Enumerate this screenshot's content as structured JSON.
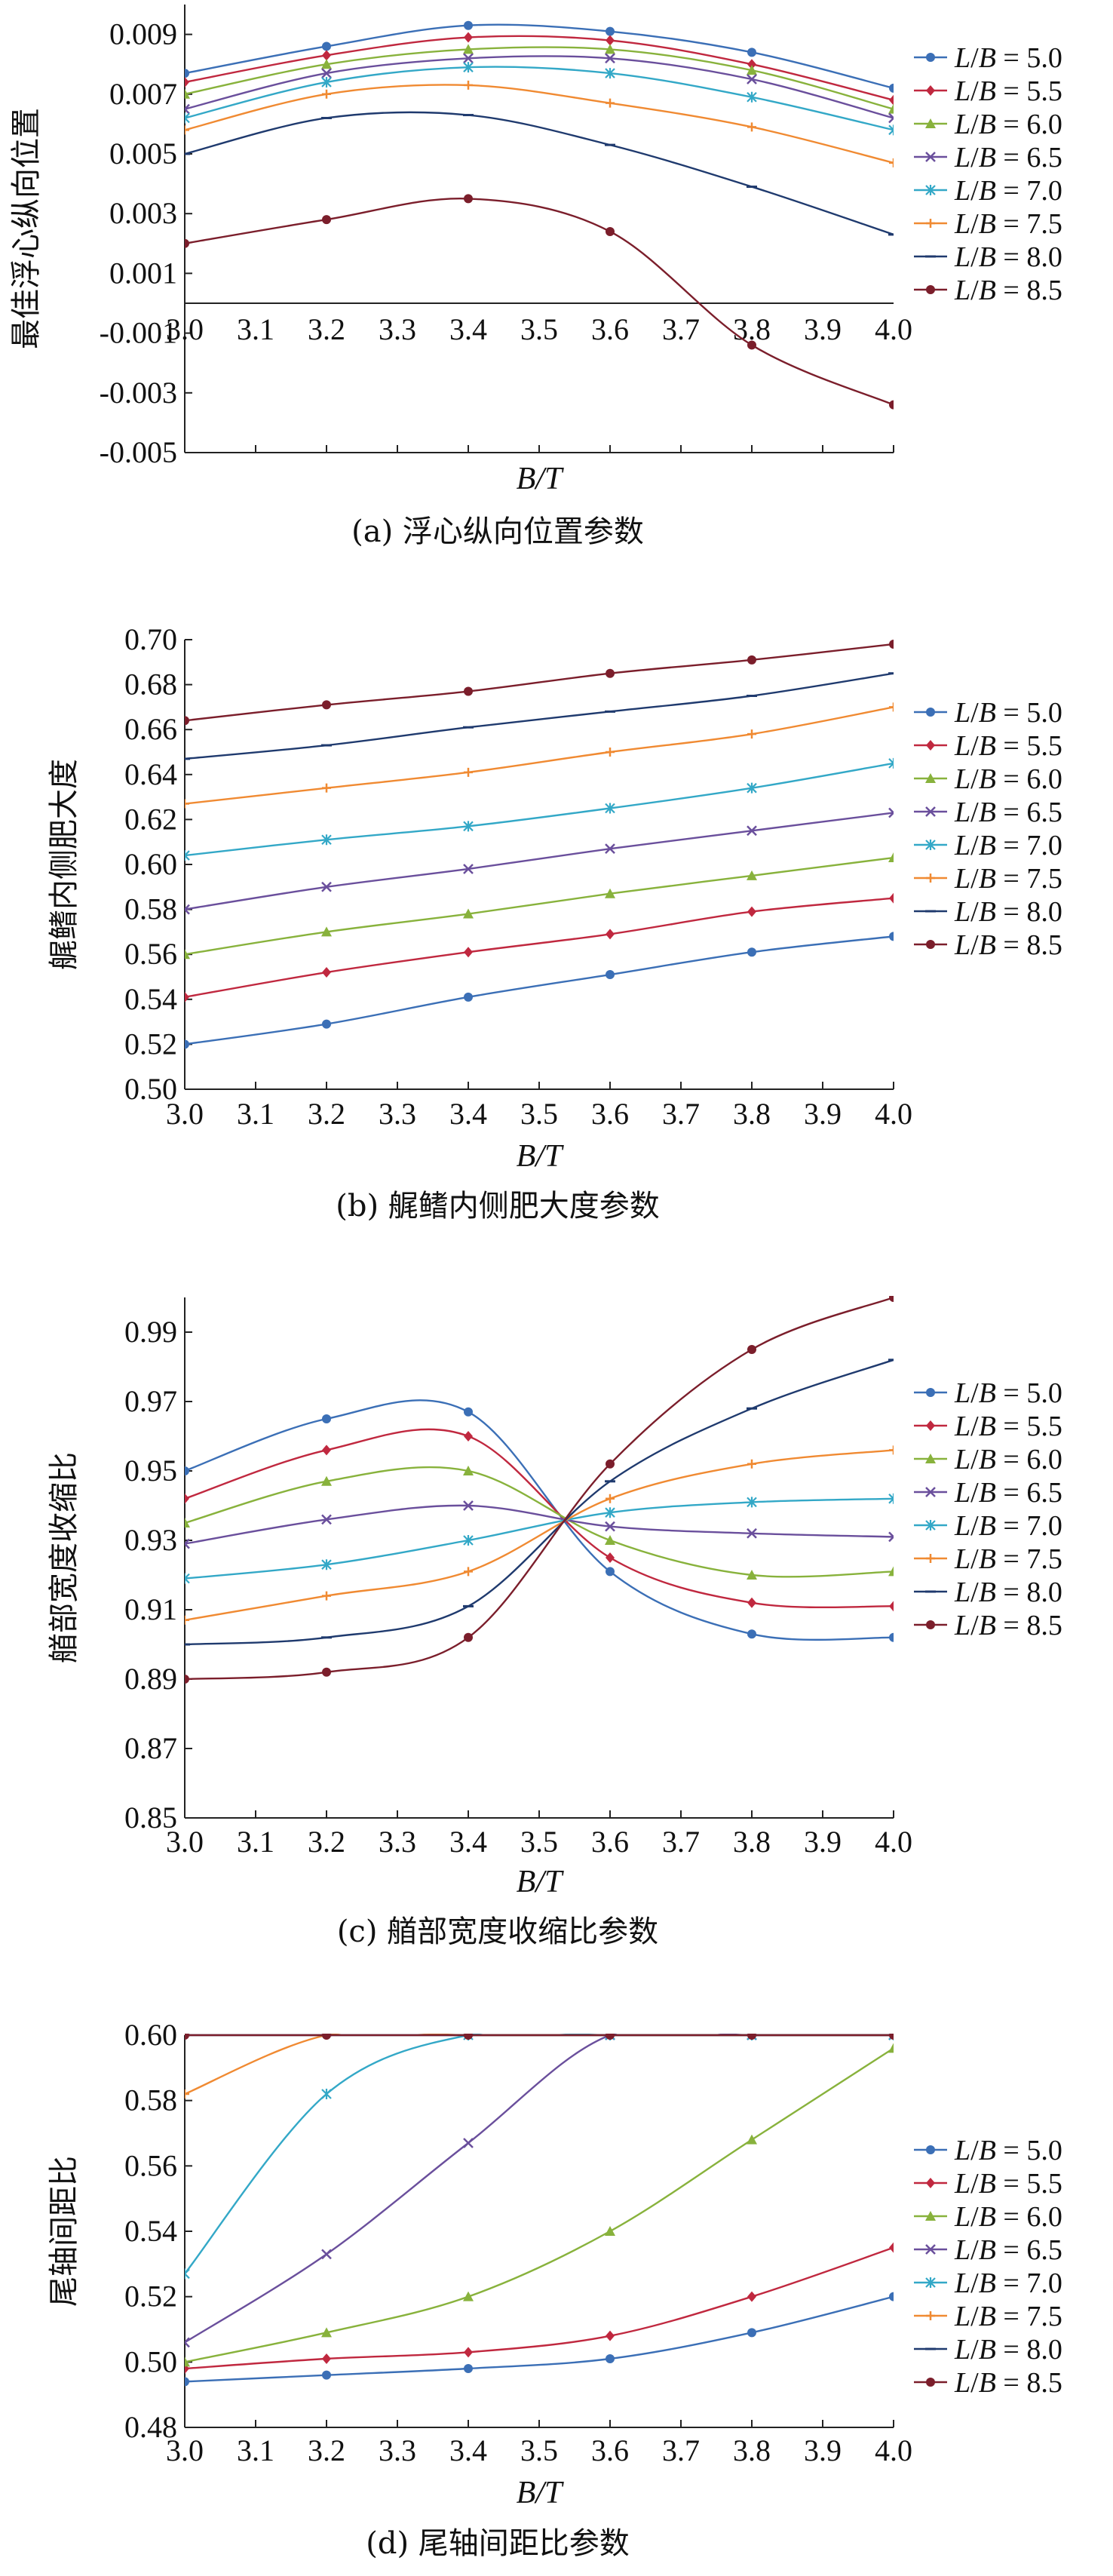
{
  "chart_data": [
    {
      "type": "line",
      "caption": "(a) 浮心纵向位置参数",
      "xlabel": "B/T",
      "ylabel": "最佳浮心纵向位置",
      "xlim": [
        3.0,
        4.0
      ],
      "ylim": [
        -0.005,
        0.01
      ],
      "xticks": [
        "3.0",
        "3.1",
        "3.2",
        "3.3",
        "3.4",
        "3.5",
        "3.6",
        "3.7",
        "3.8",
        "3.9",
        "4.0"
      ],
      "yticks": [
        "0.009",
        "0.007",
        "0.005",
        "0.003",
        "0.001",
        "-0.001",
        "-0.003",
        "-0.005"
      ],
      "ytick_values": [
        0.009,
        0.007,
        0.005,
        0.003,
        0.001,
        -0.001,
        -0.003,
        -0.005
      ],
      "grid": false,
      "legend_position": "right",
      "x": [
        3.0,
        3.2,
        3.4,
        3.6,
        3.8,
        4.0
      ],
      "series": [
        {
          "name": "L/B = 5.0",
          "values": [
            0.0077,
            0.0086,
            0.0093,
            0.0091,
            0.0084,
            0.0072
          ]
        },
        {
          "name": "L/B = 5.5",
          "values": [
            0.0074,
            0.0083,
            0.0089,
            0.0088,
            0.008,
            0.0068
          ]
        },
        {
          "name": "L/B = 6.0",
          "values": [
            0.007,
            0.008,
            0.0085,
            0.0085,
            0.0078,
            0.0065
          ]
        },
        {
          "name": "L/B = 6.5",
          "values": [
            0.0065,
            0.0077,
            0.0082,
            0.0082,
            0.0075,
            0.0062
          ]
        },
        {
          "name": "L/B = 7.0",
          "values": [
            0.0062,
            0.0074,
            0.0079,
            0.0077,
            0.0069,
            0.0058
          ]
        },
        {
          "name": "L/B = 7.5",
          "values": [
            0.0058,
            0.007,
            0.0073,
            0.0067,
            0.0059,
            0.0047
          ]
        },
        {
          "name": "L/B = 8.0",
          "values": [
            0.005,
            0.0062,
            0.0063,
            0.0053,
            0.0039,
            0.0023
          ]
        },
        {
          "name": "L/B = 8.5",
          "values": [
            0.002,
            0.0028,
            0.0035,
            0.0024,
            -0.0014,
            -0.0034
          ]
        }
      ]
    },
    {
      "type": "line",
      "caption": "(b) 艉鳍内侧肥大度参数",
      "xlabel": "B/T",
      "ylabel": "艉鳍内侧肥大度",
      "xlim": [
        3.0,
        4.0
      ],
      "ylim": [
        0.5,
        0.7
      ],
      "xticks": [
        "3.0",
        "3.1",
        "3.2",
        "3.3",
        "3.4",
        "3.5",
        "3.6",
        "3.7",
        "3.8",
        "3.9",
        "4.0"
      ],
      "yticks": [
        "0.70",
        "0.68",
        "0.66",
        "0.64",
        "0.62",
        "0.60",
        "0.58",
        "0.56",
        "0.54",
        "0.52",
        "0.50"
      ],
      "ytick_values": [
        0.7,
        0.68,
        0.66,
        0.64,
        0.62,
        0.6,
        0.58,
        0.56,
        0.54,
        0.52,
        0.5
      ],
      "grid": false,
      "legend_position": "right",
      "x": [
        3.0,
        3.2,
        3.4,
        3.6,
        3.8,
        4.0
      ],
      "series": [
        {
          "name": "L/B = 5.0",
          "values": [
            0.52,
            0.529,
            0.541,
            0.551,
            0.561,
            0.568
          ]
        },
        {
          "name": "L/B = 5.5",
          "values": [
            0.541,
            0.552,
            0.561,
            0.569,
            0.579,
            0.585
          ]
        },
        {
          "name": "L/B = 6.0",
          "values": [
            0.56,
            0.57,
            0.578,
            0.587,
            0.595,
            0.603
          ]
        },
        {
          "name": "L/B = 6.5",
          "values": [
            0.58,
            0.59,
            0.598,
            0.607,
            0.615,
            0.623
          ]
        },
        {
          "name": "L/B = 7.0",
          "values": [
            0.604,
            0.611,
            0.617,
            0.625,
            0.634,
            0.645
          ]
        },
        {
          "name": "L/B = 7.5",
          "values": [
            0.627,
            0.634,
            0.641,
            0.65,
            0.658,
            0.67
          ]
        },
        {
          "name": "L/B = 8.0",
          "values": [
            0.647,
            0.653,
            0.661,
            0.668,
            0.675,
            0.685
          ]
        },
        {
          "name": "L/B = 8.5",
          "values": [
            0.664,
            0.671,
            0.677,
            0.685,
            0.691,
            0.698
          ]
        }
      ]
    },
    {
      "type": "line",
      "caption": "(c) 艏部宽度收缩比参数",
      "xlabel": "B/T",
      "ylabel": "艏部宽度收缩比",
      "xlim": [
        3.0,
        4.0
      ],
      "ylim": [
        0.85,
        1.0
      ],
      "xticks": [
        "3.0",
        "3.1",
        "3.2",
        "3.3",
        "3.4",
        "3.5",
        "3.6",
        "3.7",
        "3.8",
        "3.9",
        "4.0"
      ],
      "yticks": [
        "0.99",
        "0.97",
        "0.95",
        "0.93",
        "0.91",
        "0.89",
        "0.87",
        "0.85"
      ],
      "ytick_values": [
        0.99,
        0.97,
        0.95,
        0.93,
        0.91,
        0.89,
        0.87,
        0.85
      ],
      "grid": false,
      "legend_position": "right",
      "x": [
        3.0,
        3.2,
        3.4,
        3.6,
        3.8,
        4.0
      ],
      "series": [
        {
          "name": "L/B = 5.0",
          "values": [
            0.95,
            0.965,
            0.967,
            0.921,
            0.903,
            0.902
          ]
        },
        {
          "name": "L/B = 5.5",
          "values": [
            0.942,
            0.956,
            0.96,
            0.925,
            0.912,
            0.911
          ]
        },
        {
          "name": "L/B = 6.0",
          "values": [
            0.935,
            0.947,
            0.95,
            0.93,
            0.92,
            0.921
          ]
        },
        {
          "name": "L/B = 6.5",
          "values": [
            0.929,
            0.936,
            0.94,
            0.934,
            0.932,
            0.931
          ]
        },
        {
          "name": "L/B = 7.0",
          "values": [
            0.919,
            0.923,
            0.93,
            0.938,
            0.941,
            0.942
          ]
        },
        {
          "name": "L/B = 7.5",
          "values": [
            0.907,
            0.914,
            0.921,
            0.942,
            0.952,
            0.956
          ]
        },
        {
          "name": "L/B = 8.0",
          "values": [
            0.9,
            0.902,
            0.911,
            0.947,
            0.968,
            0.982
          ]
        },
        {
          "name": "L/B = 8.5",
          "values": [
            0.89,
            0.892,
            0.902,
            0.952,
            0.985,
            1.0
          ]
        }
      ]
    },
    {
      "type": "line",
      "caption": "(d) 尾轴间距比参数",
      "xlabel": "B/T",
      "ylabel": "尾轴间距比",
      "xlim": [
        3.0,
        4.0
      ],
      "ylim": [
        0.48,
        0.6
      ],
      "xticks": [
        "3.0",
        "3.1",
        "3.2",
        "3.3",
        "3.4",
        "3.5",
        "3.6",
        "3.7",
        "3.8",
        "3.9",
        "4.0"
      ],
      "yticks": [
        "0.60",
        "0.58",
        "0.56",
        "0.54",
        "0.52",
        "0.50",
        "0.48"
      ],
      "ytick_values": [
        0.6,
        0.58,
        0.56,
        0.54,
        0.52,
        0.5,
        0.48
      ],
      "grid": false,
      "legend_position": "right",
      "x": [
        3.0,
        3.2,
        3.4,
        3.6,
        3.8,
        4.0
      ],
      "series": [
        {
          "name": "L/B = 5.0",
          "values": [
            0.494,
            0.496,
            0.498,
            0.501,
            0.509,
            0.52
          ]
        },
        {
          "name": "L/B = 5.5",
          "values": [
            0.498,
            0.501,
            0.503,
            0.508,
            0.52,
            0.535
          ]
        },
        {
          "name": "L/B = 6.0",
          "values": [
            0.5,
            0.509,
            0.52,
            0.54,
            0.568,
            0.596
          ]
        },
        {
          "name": "L/B = 6.5",
          "values": [
            0.506,
            0.533,
            0.567,
            0.6,
            0.6,
            0.6
          ]
        },
        {
          "name": "L/B = 7.0",
          "values": [
            0.527,
            0.582,
            0.6,
            0.6,
            0.6,
            0.6
          ]
        },
        {
          "name": "L/B = 7.5",
          "values": [
            0.582,
            0.6,
            0.6,
            0.6,
            0.6,
            0.6
          ]
        },
        {
          "name": "L/B = 8.0",
          "values": [
            0.6,
            0.6,
            0.6,
            0.6,
            0.6,
            0.6
          ]
        },
        {
          "name": "L/B = 8.5",
          "values": [
            0.6,
            0.6,
            0.6,
            0.6,
            0.6,
            0.6
          ]
        }
      ]
    }
  ],
  "series_styles": [
    {
      "color": "#3b6fb6",
      "marker": "circle"
    },
    {
      "color": "#c0283f",
      "marker": "diamond"
    },
    {
      "color": "#88b23c",
      "marker": "triangle"
    },
    {
      "color": "#6a4f9c",
      "marker": "x"
    },
    {
      "color": "#33a8c7",
      "marker": "star"
    },
    {
      "color": "#f08a32",
      "marker": "plus"
    },
    {
      "color": "#1f3a6e",
      "marker": "dash"
    },
    {
      "color": "#7b1e2b",
      "marker": "circle"
    }
  ]
}
